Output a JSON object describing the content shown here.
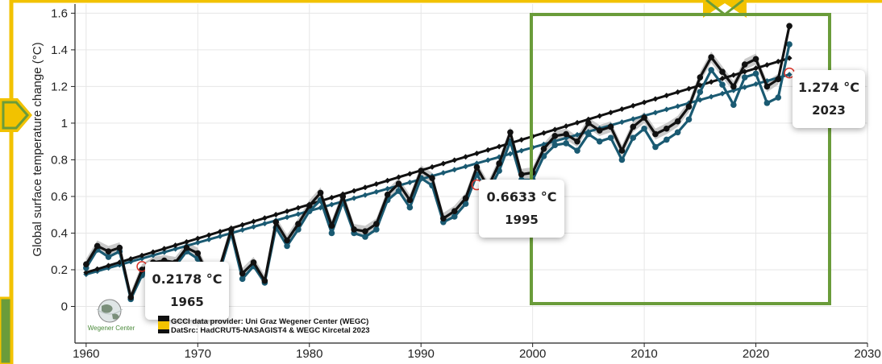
{
  "chart_data": {
    "type": "line",
    "ylabel": "Global surface temperature change (°C)",
    "xlabel": "",
    "xlim": [
      1959,
      2030
    ],
    "ylim": [
      -0.2,
      1.65
    ],
    "x_ticks": [
      1960,
      1970,
      1980,
      1990,
      2000,
      2010,
      2020,
      2030
    ],
    "y_ticks": [
      0,
      0.2,
      0.4,
      0.6,
      0.8,
      1,
      1.2,
      1.4,
      1.6
    ],
    "grid": true,
    "series": [
      {
        "key": "black",
        "color": "#111111",
        "x": [
          1960,
          1961,
          1962,
          1963,
          1964,
          1965,
          1966,
          1967,
          1968,
          1969,
          1970,
          1971,
          1972,
          1973,
          1974,
          1975,
          1976,
          1977,
          1978,
          1979,
          1980,
          1981,
          1982,
          1983,
          1984,
          1985,
          1986,
          1987,
          1988,
          1989,
          1990,
          1991,
          1992,
          1993,
          1994,
          1995,
          1996,
          1997,
          1998,
          1999,
          2000,
          2001,
          2002,
          2003,
          2004,
          2005,
          2006,
          2007,
          2008,
          2009,
          2010,
          2011,
          2012,
          2013,
          2014,
          2015,
          2016,
          2017,
          2018,
          2019,
          2020,
          2021,
          2022,
          2023
        ],
        "values": [
          0.23,
          0.33,
          0.3,
          0.32,
          0.05,
          0.2,
          0.24,
          0.25,
          0.24,
          0.32,
          0.29,
          0.16,
          0.22,
          0.42,
          0.18,
          0.24,
          0.14,
          0.46,
          0.36,
          0.45,
          0.55,
          0.62,
          0.44,
          0.6,
          0.42,
          0.41,
          0.45,
          0.61,
          0.67,
          0.58,
          0.74,
          0.7,
          0.48,
          0.52,
          0.59,
          0.76,
          0.65,
          0.78,
          0.95,
          0.72,
          0.73,
          0.86,
          0.93,
          0.94,
          0.9,
          1.0,
          0.96,
          0.98,
          0.85,
          0.98,
          1.03,
          0.94,
          0.97,
          1.01,
          1.09,
          1.25,
          1.36,
          1.28,
          1.2,
          1.32,
          1.35,
          1.2,
          1.24,
          1.53
        ]
      },
      {
        "key": "blue",
        "color": "#1a5a72",
        "x": [
          1960,
          1961,
          1962,
          1963,
          1964,
          1965,
          1966,
          1967,
          1968,
          1969,
          1970,
          1971,
          1972,
          1973,
          1974,
          1975,
          1976,
          1977,
          1978,
          1979,
          1980,
          1981,
          1982,
          1983,
          1984,
          1985,
          1986,
          1987,
          1988,
          1989,
          1990,
          1991,
          1992,
          1993,
          1994,
          1995,
          1996,
          1997,
          1998,
          1999,
          2000,
          2001,
          2002,
          2003,
          2004,
          2005,
          2006,
          2007,
          2008,
          2009,
          2010,
          2011,
          2012,
          2013,
          2014,
          2015,
          2016,
          2017,
          2018,
          2019,
          2020,
          2021,
          2022,
          2023
        ],
        "values": [
          0.21,
          0.31,
          0.27,
          0.3,
          0.04,
          0.17,
          0.22,
          0.23,
          0.22,
          0.3,
          0.26,
          0.14,
          0.2,
          0.4,
          0.15,
          0.22,
          0.13,
          0.43,
          0.33,
          0.42,
          0.52,
          0.58,
          0.4,
          0.57,
          0.4,
          0.38,
          0.42,
          0.58,
          0.63,
          0.54,
          0.7,
          0.66,
          0.46,
          0.49,
          0.56,
          0.72,
          0.62,
          0.74,
          0.9,
          0.69,
          0.69,
          0.82,
          0.88,
          0.89,
          0.85,
          0.94,
          0.9,
          0.92,
          0.8,
          0.92,
          0.97,
          0.87,
          0.91,
          0.95,
          1.02,
          1.17,
          1.29,
          1.21,
          1.1,
          1.25,
          1.27,
          1.11,
          1.14,
          1.43
        ]
      },
      {
        "key": "trend-black",
        "color": "#111111",
        "x": [
          1960,
          2023
        ],
        "values": [
          0.185,
          1.355
        ]
      },
      {
        "key": "trend-blue",
        "color": "#1a5a72",
        "x": [
          1960,
          2023
        ],
        "values": [
          0.175,
          1.265
        ]
      }
    ],
    "annotations": [
      {
        "value": "0.2178 °C",
        "year": "1965",
        "x": 1965,
        "y": 0.2178
      },
      {
        "value": "0.6633 °C",
        "year": "1995",
        "x": 1995,
        "y": 0.6633
      },
      {
        "value": "1.274 °C",
        "year": "2023",
        "x": 2023,
        "y": 1.274
      }
    ]
  },
  "credits": {
    "logo_text": "Wegener Center",
    "line1": "GCCI data provider: Uni Graz Wegener Center (WEGC)",
    "line2": "DatSrc: HadCRUT5-NASAGIST4 & WEGC Kircetal 2023"
  },
  "colors": {
    "accent_yellow": "#f2c200",
    "accent_green": "#6a9c3a"
  }
}
